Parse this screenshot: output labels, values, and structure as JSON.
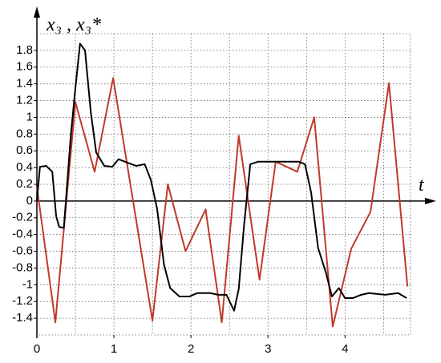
{
  "chart_data": {
    "type": "line",
    "xlabel": "t",
    "ylabel": "x₃ , x₃*",
    "xlim": [
      0,
      4.85
    ],
    "ylim": [
      -1.6,
      2.0
    ],
    "xticks": [
      0,
      1,
      2,
      3,
      4
    ],
    "yticks": [
      -1.4,
      -1.2,
      -1,
      -0.8,
      -0.6,
      -0.4,
      -0.2,
      0,
      0.2,
      0.4,
      0.6,
      0.8,
      1,
      1.2,
      1.4,
      1.6,
      1.8
    ],
    "xgrid": [
      0.5,
      1,
      1.5,
      2,
      2.5,
      3,
      3.5,
      4,
      4.5
    ],
    "grid": true,
    "series": [
      {
        "color": "#c0392b",
        "x": [
          0,
          0.24,
          0.5,
          0.75,
          0.99,
          1.5,
          1.7,
          1.93,
          2.19,
          2.4,
          2.62,
          2.89,
          3.1,
          3.38,
          3.6,
          3.84,
          4.08,
          4.33,
          4.57,
          4.81
        ],
        "values": [
          0.17,
          -1.45,
          1.18,
          0.35,
          1.47,
          -1.43,
          0.2,
          -0.6,
          -0.1,
          -1.45,
          0.78,
          -0.94,
          0.47,
          0.35,
          1.0,
          -1.5,
          -0.57,
          -0.13,
          1.41,
          -1.02
        ]
      },
      {
        "color": "#000000",
        "x": [
          0,
          0.04,
          0.12,
          0.2,
          0.25,
          0.29,
          0.35,
          0.44,
          0.5,
          0.56,
          0.625,
          0.7,
          0.77,
          0.875,
          0.98,
          1.06,
          1.17,
          1.29,
          1.4,
          1.48,
          1.56,
          1.65,
          1.73,
          1.85,
          1.98,
          2.08,
          2.25,
          2.35,
          2.46,
          2.56,
          2.62,
          2.69,
          2.77,
          2.87,
          3.1,
          3.4,
          3.48,
          3.56,
          3.65,
          3.75,
          3.83,
          3.92,
          4.0,
          4.1,
          4.21,
          4.31,
          4.52,
          4.69,
          4.8
        ],
        "values": [
          0,
          0.41,
          0.42,
          0.35,
          -0.18,
          -0.31,
          -0.32,
          0.78,
          1.35,
          1.88,
          1.8,
          1.06,
          0.58,
          0.42,
          0.41,
          0.5,
          0.46,
          0.42,
          0.44,
          0.25,
          -0.09,
          -0.76,
          -1.04,
          -1.14,
          -1.14,
          -1.1,
          -1.1,
          -1.12,
          -1.12,
          -1.31,
          -1.05,
          -0.28,
          0.44,
          0.47,
          0.47,
          0.47,
          0.44,
          0.1,
          -0.56,
          -0.85,
          -1.14,
          -1.04,
          -1.16,
          -1.16,
          -1.12,
          -1.1,
          -1.12,
          -1.1,
          -1.16
        ]
      }
    ]
  }
}
